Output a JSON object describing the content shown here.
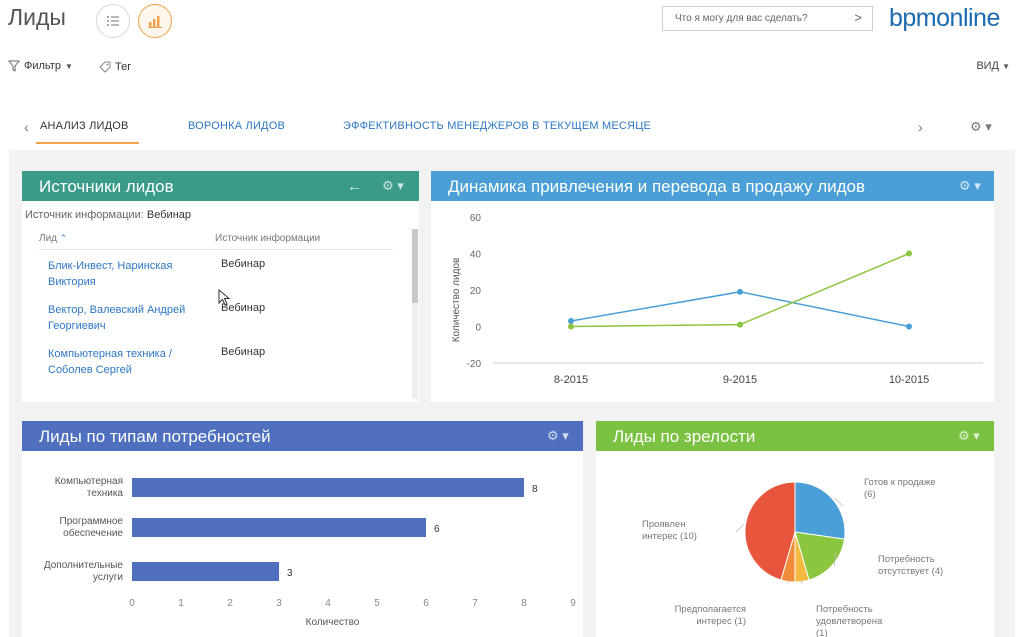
{
  "app": {
    "page_title": "Лиды",
    "search_placeholder": "Что я могу для вас сделать?",
    "brand_part1": "bpm",
    "brand_part2": "online"
  },
  "filterbar": {
    "filter_label": "Фильтр",
    "tag_label": "Тег",
    "view_label": "ВИД"
  },
  "tabs": [
    {
      "label": "АНАЛИЗ ЛИДОВ",
      "active": true
    },
    {
      "label": "ВОРОНКА ЛИДОВ",
      "active": false
    },
    {
      "label": "ЭФФЕКТИВНОСТЬ МЕНЕДЖЕРОВ В ТЕКУЩЕМ МЕСЯЦЕ",
      "active": false
    }
  ],
  "lead_sources": {
    "title": "Источники лидов",
    "header_color": "#3a9b8a",
    "info_label": "Источник информации:",
    "info_value": "Вебинар",
    "col_lead": "Лид",
    "col_source": "Источник информации",
    "rows": [
      {
        "name": "Блик-Инвест, Наринская Виктория",
        "source": "Вебинар"
      },
      {
        "name": "Вектор, Валевский Андрей Георгиевич",
        "source": "Вебинар"
      },
      {
        "name": "Компьютерная техника / Соболев Сергей",
        "source": "Вебинар"
      }
    ]
  },
  "dynamics": {
    "title": "Динамика привлечения и перевода в продажу лидов",
    "header_color": "#4a9fd6"
  },
  "needs": {
    "title": "Лиды по типам потребностей",
    "header_color": "#4f6fbf"
  },
  "maturity": {
    "title": "Лиды по зрелости",
    "header_color": "#7cc242"
  },
  "chart_data": [
    {
      "type": "line",
      "ylabel": "Количество лидов",
      "xlabel": "",
      "x": [
        "8-2015",
        "9-2015",
        "10-2015"
      ],
      "ylim": [
        -20,
        60
      ],
      "yticks": [
        60,
        40,
        20,
        0,
        -20
      ],
      "series": [
        {
          "color": "#4a9fd6",
          "values": [
            3,
            19,
            0
          ]
        },
        {
          "color": "#8cc63f",
          "values": [
            0,
            1,
            40
          ]
        }
      ]
    },
    {
      "type": "bar",
      "orientation": "horizontal",
      "color": "#4f6fbf",
      "categories": [
        "Компьютерная техника",
        "Программное обеспечение",
        "Дополнительные услуги"
      ],
      "category_lines": [
        [
          "Компьютерная",
          "техника"
        ],
        [
          "Программное",
          "обеспечение"
        ],
        [
          "Дополнительные",
          "услуги"
        ]
      ],
      "values": [
        8,
        6,
        3
      ],
      "xlabel": "Количество",
      "xlim": [
        0,
        9
      ],
      "xticks": [
        "0",
        "1",
        "2",
        "3",
        "4",
        "5",
        "6",
        "7",
        "8",
        "9"
      ]
    },
    {
      "type": "pie",
      "slices": [
        {
          "label_lines": [
            "Готов к продаже",
            "(6)"
          ],
          "value": 6,
          "color": "#4a9fd6"
        },
        {
          "label_lines": [
            "Потребность",
            "отсутствует (4)"
          ],
          "value": 4,
          "color": "#8cc63f"
        },
        {
          "label_lines": [
            "Потребность",
            "удовлетворена",
            "(1)"
          ],
          "value": 1,
          "color": "#f4b940"
        },
        {
          "label_lines": [
            "Предполагается",
            "интерес (1)"
          ],
          "value": 1,
          "color": "#f08c3a"
        },
        {
          "label_lines": [
            "Проявлен",
            "интерес (10)"
          ],
          "value": 10,
          "color": "#e8553d"
        }
      ]
    }
  ]
}
